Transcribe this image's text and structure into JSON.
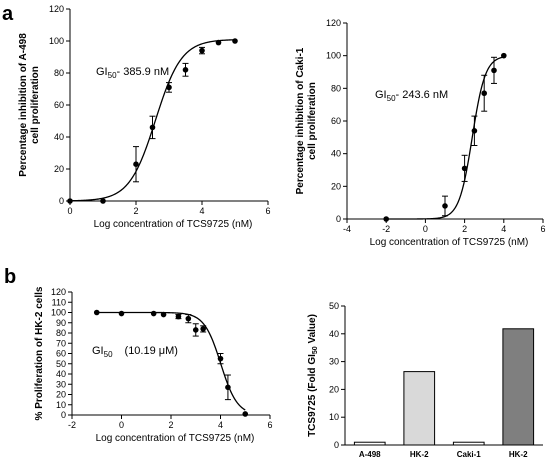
{
  "panels": {
    "a": "a",
    "b": "b"
  },
  "chart_data": [
    {
      "type": "scatter",
      "panel": "a",
      "xlabel": "Log concentration of TCS9725 (nM)",
      "ylabel_lines": [
        "Percentage inhibition of A-498",
        "cell proliferation"
      ],
      "xlim": [
        0,
        6
      ],
      "ylim": [
        0,
        120
      ],
      "xticks": [
        0,
        2,
        4,
        6
      ],
      "yticks": [
        0,
        20,
        40,
        60,
        80,
        100,
        120
      ],
      "annotation": {
        "prefix": "GI",
        "sub": "50",
        "text": "- 385.9 nM"
      },
      "points": [
        {
          "x": 0,
          "y": 0,
          "err": 0
        },
        {
          "x": 1,
          "y": 0,
          "err": 0
        },
        {
          "x": 2,
          "y": 23,
          "err": 11
        },
        {
          "x": 2.5,
          "y": 46,
          "err": 7
        },
        {
          "x": 3,
          "y": 71,
          "err": 3
        },
        {
          "x": 3.5,
          "y": 82,
          "err": 4
        },
        {
          "x": 4,
          "y": 94,
          "err": 2
        },
        {
          "x": 4.5,
          "y": 99,
          "err": 0
        },
        {
          "x": 5,
          "y": 100,
          "err": 0
        }
      ],
      "fit": {
        "bottom": 0,
        "top": 101,
        "logEC50": 2.59,
        "hill": 1.1
      }
    },
    {
      "type": "scatter",
      "panel": "a",
      "xlabel": "Log concentration of TCS9725 (nM)",
      "ylabel_lines": [
        "Percentage inhibition of Caki-1",
        "cell proliferation"
      ],
      "xlim": [
        -4,
        6
      ],
      "ylim": [
        0,
        120
      ],
      "xticks": [
        -4,
        -2,
        0,
        2,
        4,
        6
      ],
      "yticks": [
        0,
        20,
        40,
        60,
        80,
        100,
        120
      ],
      "annotation": {
        "prefix": "GI",
        "sub": "50",
        "text": "- 243.6 nM"
      },
      "points": [
        {
          "x": -2,
          "y": 0,
          "err": 0
        },
        {
          "x": 1,
          "y": 8,
          "err": 6
        },
        {
          "x": 2,
          "y": 31,
          "err": 8
        },
        {
          "x": 2.5,
          "y": 54,
          "err": 9
        },
        {
          "x": 3,
          "y": 77,
          "err": 11
        },
        {
          "x": 3.5,
          "y": 91,
          "err": 8
        },
        {
          "x": 4,
          "y": 100,
          "err": 0
        }
      ],
      "fit": {
        "bottom": 0,
        "top": 100,
        "logEC50": 2.39,
        "hill": 1.3
      }
    },
    {
      "type": "scatter",
      "panel": "b",
      "xlabel": "Log concentration of TCS9725 (nM)",
      "ylabel_lines": [
        "% Proliferation of HK-2 cells"
      ],
      "xlim": [
        -2,
        6
      ],
      "ylim": [
        0,
        120
      ],
      "xticks": [
        -2,
        0,
        2,
        4,
        6
      ],
      "yticks": [
        0,
        10,
        20,
        30,
        40,
        50,
        60,
        70,
        80,
        90,
        100,
        110,
        120
      ],
      "annotation": {
        "prefix": "GI",
        "sub": "50",
        "text": "(10.19 μM)"
      },
      "points": [
        {
          "x": -1,
          "y": 100,
          "err": 0
        },
        {
          "x": 0,
          "y": 99,
          "err": 0
        },
        {
          "x": 1.3,
          "y": 99,
          "err": 0
        },
        {
          "x": 1.7,
          "y": 98,
          "err": 0
        },
        {
          "x": 2.3,
          "y": 96,
          "err": 2
        },
        {
          "x": 2.7,
          "y": 94,
          "err": 4
        },
        {
          "x": 3,
          "y": 83,
          "err": 6
        },
        {
          "x": 3.3,
          "y": 84,
          "err": 3
        },
        {
          "x": 4,
          "y": 55,
          "err": 5
        },
        {
          "x": 4.3,
          "y": 27,
          "err": 12
        },
        {
          "x": 5,
          "y": 1,
          "err": 0
        }
      ],
      "fit": {
        "bottom": 0,
        "top": 100,
        "logEC50": 4.01,
        "hill": -1.3
      }
    },
    {
      "type": "bar",
      "panel": "b",
      "ylabel": "TCS9725 (Fold GI50 Value)",
      "ylabel_parts": {
        "pre": "TCS9725 (Fold GI",
        "sub": "50",
        "post": " Value)"
      },
      "ylim": [
        0,
        50
      ],
      "yticks": [
        0,
        10,
        20,
        30,
        40,
        50
      ],
      "categories": [
        "A-498",
        "HK-2",
        "Caki-1",
        "HK-2"
      ],
      "values": [
        1,
        26.4,
        1,
        41.8
      ],
      "colors": [
        "#ffffff",
        "#d9d9d9",
        "#ffffff",
        "#7f7f7f"
      ]
    }
  ]
}
